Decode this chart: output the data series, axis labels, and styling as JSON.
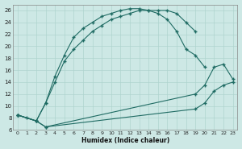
{
  "xlabel": "Humidex (Indice chaleur)",
  "bg_color": "#cde8e5",
  "line_color": "#1f6b63",
  "grid_color": "#afd4cf",
  "xlim": [
    -0.5,
    23.5
  ],
  "ylim": [
    6,
    27
  ],
  "xticks": [
    0,
    1,
    2,
    3,
    4,
    5,
    6,
    7,
    8,
    9,
    10,
    11,
    12,
    13,
    14,
    15,
    16,
    17,
    18,
    19,
    20,
    21,
    22,
    23
  ],
  "yticks": [
    6,
    8,
    10,
    12,
    14,
    16,
    18,
    20,
    22,
    24,
    26
  ],
  "curve1_x": [
    0,
    1,
    2,
    3,
    4,
    5,
    6,
    7,
    8,
    9,
    10,
    11,
    12,
    13,
    14,
    15,
    16,
    17,
    18,
    19
  ],
  "curve1_y": [
    8.5,
    8.0,
    7.5,
    10.5,
    15.0,
    18.5,
    21.5,
    23.0,
    24.0,
    25.0,
    25.5,
    26.0,
    26.3,
    26.3,
    26.0,
    26.0,
    26.0,
    25.5,
    24.0,
    22.5
  ],
  "curve2_x": [
    0,
    2,
    3,
    4,
    5,
    6,
    7,
    8,
    9,
    10,
    11,
    12,
    13,
    14,
    15,
    16,
    17,
    18,
    19,
    20
  ],
  "curve2_y": [
    8.5,
    7.5,
    10.5,
    14.0,
    17.5,
    19.5,
    21.0,
    22.5,
    23.5,
    24.5,
    25.0,
    25.5,
    26.0,
    26.0,
    25.5,
    24.5,
    22.5,
    19.5,
    18.5,
    16.5
  ],
  "curve3_x": [
    0,
    2,
    3,
    19,
    20,
    21,
    22,
    23
  ],
  "curve3_y": [
    8.5,
    7.5,
    6.5,
    12.0,
    13.5,
    16.5,
    17.0,
    14.5
  ],
  "curve4_x": [
    0,
    2,
    3,
    19,
    20,
    21,
    22,
    23
  ],
  "curve4_y": [
    8.5,
    7.5,
    6.5,
    9.5,
    10.5,
    12.5,
    13.5,
    14.0
  ]
}
